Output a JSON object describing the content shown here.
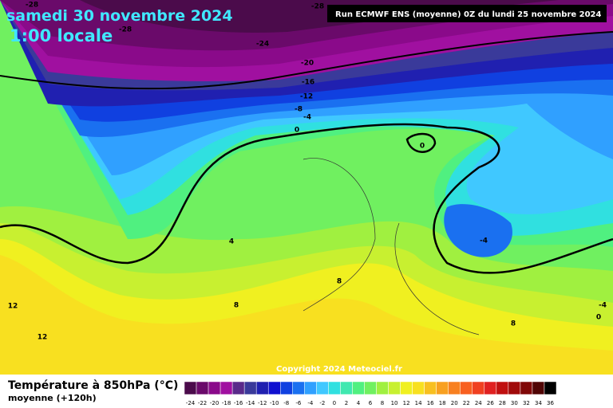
{
  "header": {
    "date": "samedi 30 novembre 2024",
    "time": "1:00 locale",
    "run": "Run ECMWF ENS (moyenne) 0Z du lundi 25 novembre 2024"
  },
  "footer": {
    "title": "Température à 850hPa (°C)",
    "subtitle": "moyenne  (+120h)",
    "copyright": "Copyright 2024 Meteociel.fr"
  },
  "scale": {
    "labels": [
      -24,
      -22,
      -20,
      -18,
      -16,
      -14,
      -12,
      -10,
      -8,
      -6,
      -4,
      -2,
      0,
      2,
      4,
      6,
      8,
      10,
      12,
      14,
      16,
      18,
      20,
      22,
      24,
      26,
      28,
      30,
      32,
      34,
      36
    ],
    "colors": [
      "#4b0b4b",
      "#6a0a6a",
      "#8a0a8a",
      "#a010a0",
      "#5a2a8a",
      "#3a3a9a",
      "#2020b0",
      "#1010d0",
      "#1040e0",
      "#1a70f0",
      "#30a0ff",
      "#40c8ff",
      "#30e0e0",
      "#40e8b0",
      "#50f080",
      "#70f060",
      "#a0f040",
      "#c8f030",
      "#f0f020",
      "#f8e020",
      "#f8c020",
      "#f8a020",
      "#f88020",
      "#f86020",
      "#f04020",
      "#e02020",
      "#c01010",
      "#a00a0a",
      "#800808",
      "#500505",
      "#000000"
    ]
  },
  "contour_labels": [
    "-28",
    "-28",
    "-28",
    "-24",
    "-20",
    "-16",
    "-12",
    "-8",
    "-4",
    "0",
    "0",
    "4",
    "-4",
    "8",
    "8",
    "12",
    "12",
    "8",
    "-4",
    "0"
  ]
}
